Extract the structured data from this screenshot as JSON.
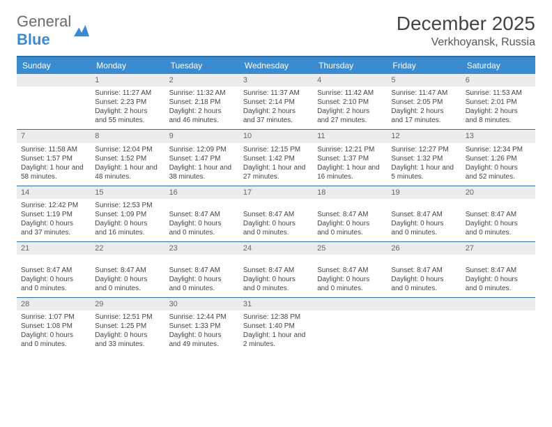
{
  "logo": {
    "line1": "General",
    "line2": "Blue"
  },
  "title": "December 2025",
  "location": "Verkhoyansk, Russia",
  "colors": {
    "header_bg": "#3b8bd0",
    "border": "#2d6ea8",
    "daynum_bg": "#ececec",
    "text": "#444444"
  },
  "day_names": [
    "Sunday",
    "Monday",
    "Tuesday",
    "Wednesday",
    "Thursday",
    "Friday",
    "Saturday"
  ],
  "weeks": [
    [
      {
        "day": "",
        "lines": []
      },
      {
        "day": "1",
        "lines": [
          "Sunrise: 11:27 AM",
          "Sunset: 2:23 PM",
          "Daylight: 2 hours and 55 minutes."
        ]
      },
      {
        "day": "2",
        "lines": [
          "Sunrise: 11:32 AM",
          "Sunset: 2:18 PM",
          "Daylight: 2 hours and 46 minutes."
        ]
      },
      {
        "day": "3",
        "lines": [
          "Sunrise: 11:37 AM",
          "Sunset: 2:14 PM",
          "Daylight: 2 hours and 37 minutes."
        ]
      },
      {
        "day": "4",
        "lines": [
          "Sunrise: 11:42 AM",
          "Sunset: 2:10 PM",
          "Daylight: 2 hours and 27 minutes."
        ]
      },
      {
        "day": "5",
        "lines": [
          "Sunrise: 11:47 AM",
          "Sunset: 2:05 PM",
          "Daylight: 2 hours and 17 minutes."
        ]
      },
      {
        "day": "6",
        "lines": [
          "Sunrise: 11:53 AM",
          "Sunset: 2:01 PM",
          "Daylight: 2 hours and 8 minutes."
        ]
      }
    ],
    [
      {
        "day": "7",
        "lines": [
          "Sunrise: 11:58 AM",
          "Sunset: 1:57 PM",
          "Daylight: 1 hour and 58 minutes."
        ]
      },
      {
        "day": "8",
        "lines": [
          "Sunrise: 12:04 PM",
          "Sunset: 1:52 PM",
          "Daylight: 1 hour and 48 minutes."
        ]
      },
      {
        "day": "9",
        "lines": [
          "Sunrise: 12:09 PM",
          "Sunset: 1:47 PM",
          "Daylight: 1 hour and 38 minutes."
        ]
      },
      {
        "day": "10",
        "lines": [
          "Sunrise: 12:15 PM",
          "Sunset: 1:42 PM",
          "Daylight: 1 hour and 27 minutes."
        ]
      },
      {
        "day": "11",
        "lines": [
          "Sunrise: 12:21 PM",
          "Sunset: 1:37 PM",
          "Daylight: 1 hour and 16 minutes."
        ]
      },
      {
        "day": "12",
        "lines": [
          "Sunrise: 12:27 PM",
          "Sunset: 1:32 PM",
          "Daylight: 1 hour and 5 minutes."
        ]
      },
      {
        "day": "13",
        "lines": [
          "Sunrise: 12:34 PM",
          "Sunset: 1:26 PM",
          "Daylight: 0 hours and 52 minutes."
        ]
      }
    ],
    [
      {
        "day": "14",
        "lines": [
          "Sunrise: 12:42 PM",
          "Sunset: 1:19 PM",
          "Daylight: 0 hours and 37 minutes."
        ]
      },
      {
        "day": "15",
        "lines": [
          "Sunrise: 12:53 PM",
          "Sunset: 1:09 PM",
          "Daylight: 0 hours and 16 minutes."
        ]
      },
      {
        "day": "16",
        "lines": [
          "",
          "Sunset: 8:47 AM",
          "Daylight: 0 hours and 0 minutes."
        ]
      },
      {
        "day": "17",
        "lines": [
          "",
          "Sunset: 8:47 AM",
          "Daylight: 0 hours and 0 minutes."
        ]
      },
      {
        "day": "18",
        "lines": [
          "",
          "Sunset: 8:47 AM",
          "Daylight: 0 hours and 0 minutes."
        ]
      },
      {
        "day": "19",
        "lines": [
          "",
          "Sunset: 8:47 AM",
          "Daylight: 0 hours and 0 minutes."
        ]
      },
      {
        "day": "20",
        "lines": [
          "",
          "Sunset: 8:47 AM",
          "Daylight: 0 hours and 0 minutes."
        ]
      }
    ],
    [
      {
        "day": "21",
        "lines": [
          "",
          "Sunset: 8:47 AM",
          "Daylight: 0 hours and 0 minutes."
        ]
      },
      {
        "day": "22",
        "lines": [
          "",
          "Sunset: 8:47 AM",
          "Daylight: 0 hours and 0 minutes."
        ]
      },
      {
        "day": "23",
        "lines": [
          "",
          "Sunset: 8:47 AM",
          "Daylight: 0 hours and 0 minutes."
        ]
      },
      {
        "day": "24",
        "lines": [
          "",
          "Sunset: 8:47 AM",
          "Daylight: 0 hours and 0 minutes."
        ]
      },
      {
        "day": "25",
        "lines": [
          "",
          "Sunset: 8:47 AM",
          "Daylight: 0 hours and 0 minutes."
        ]
      },
      {
        "day": "26",
        "lines": [
          "",
          "Sunset: 8:47 AM",
          "Daylight: 0 hours and 0 minutes."
        ]
      },
      {
        "day": "27",
        "lines": [
          "",
          "Sunset: 8:47 AM",
          "Daylight: 0 hours and 0 minutes."
        ]
      }
    ],
    [
      {
        "day": "28",
        "lines": [
          "Sunrise: 1:07 PM",
          "Sunset: 1:08 PM",
          "Daylight: 0 hours and 0 minutes."
        ]
      },
      {
        "day": "29",
        "lines": [
          "Sunrise: 12:51 PM",
          "Sunset: 1:25 PM",
          "Daylight: 0 hours and 33 minutes."
        ]
      },
      {
        "day": "30",
        "lines": [
          "Sunrise: 12:44 PM",
          "Sunset: 1:33 PM",
          "Daylight: 0 hours and 49 minutes."
        ]
      },
      {
        "day": "31",
        "lines": [
          "Sunrise: 12:38 PM",
          "Sunset: 1:40 PM",
          "Daylight: 1 hour and 2 minutes."
        ]
      },
      {
        "day": "",
        "lines": []
      },
      {
        "day": "",
        "lines": []
      },
      {
        "day": "",
        "lines": []
      }
    ]
  ]
}
